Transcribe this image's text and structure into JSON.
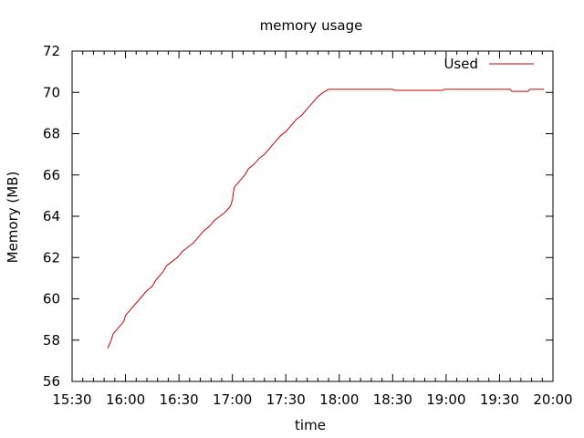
{
  "chart_data": {
    "type": "line",
    "title": "memory usage",
    "xlabel": "time",
    "ylabel": "Memory (MB)",
    "xlim": [
      "15:30",
      "20:00"
    ],
    "ylim": [
      56,
      72
    ],
    "xticks": [
      "15:30",
      "16:00",
      "16:30",
      "17:00",
      "17:30",
      "18:00",
      "18:30",
      "19:00",
      "19:30",
      "20:00"
    ],
    "yticks": [
      56,
      58,
      60,
      62,
      64,
      66,
      68,
      70,
      72
    ],
    "grid": false,
    "legend_position": "top-right",
    "series": [
      {
        "name": "Used",
        "color": "#cc0000",
        "points": [
          [
            "15:50",
            57.6
          ],
          [
            "15:51",
            57.8
          ],
          [
            "15:52",
            58.0
          ],
          [
            "15:53",
            58.3
          ],
          [
            "15:55",
            58.5
          ],
          [
            "15:57",
            58.7
          ],
          [
            "15:59",
            58.9
          ],
          [
            "16:00",
            59.2
          ],
          [
            "16:02",
            59.4
          ],
          [
            "16:04",
            59.6
          ],
          [
            "16:06",
            59.8
          ],
          [
            "16:08",
            60.0
          ],
          [
            "16:10",
            60.2
          ],
          [
            "16:12",
            60.4
          ],
          [
            "16:15",
            60.6
          ],
          [
            "16:17",
            60.9
          ],
          [
            "16:19",
            61.1
          ],
          [
            "16:21",
            61.3
          ],
          [
            "16:23",
            61.6
          ],
          [
            "16:26",
            61.8
          ],
          [
            "16:29",
            62.0
          ],
          [
            "16:32",
            62.3
          ],
          [
            "16:35",
            62.5
          ],
          [
            "16:38",
            62.7
          ],
          [
            "16:41",
            63.0
          ],
          [
            "16:44",
            63.3
          ],
          [
            "16:47",
            63.5
          ],
          [
            "16:50",
            63.8
          ],
          [
            "16:53",
            64.0
          ],
          [
            "16:56",
            64.2
          ],
          [
            "16:59",
            64.5
          ],
          [
            "17:00",
            64.8
          ],
          [
            "17:01",
            65.4
          ],
          [
            "17:03",
            65.6
          ],
          [
            "17:05",
            65.8
          ],
          [
            "17:07",
            66.0
          ],
          [
            "17:09",
            66.3
          ],
          [
            "17:12",
            66.5
          ],
          [
            "17:15",
            66.8
          ],
          [
            "17:18",
            67.0
          ],
          [
            "17:21",
            67.3
          ],
          [
            "17:24",
            67.6
          ],
          [
            "17:27",
            67.9
          ],
          [
            "17:30",
            68.1
          ],
          [
            "17:33",
            68.4
          ],
          [
            "17:36",
            68.7
          ],
          [
            "17:39",
            68.9
          ],
          [
            "17:42",
            69.2
          ],
          [
            "17:45",
            69.5
          ],
          [
            "17:48",
            69.8
          ],
          [
            "17:51",
            70.0
          ],
          [
            "17:54",
            70.15
          ],
          [
            "18:30",
            70.15
          ],
          [
            "18:31",
            70.1
          ],
          [
            "18:58",
            70.1
          ],
          [
            "18:59",
            70.15
          ],
          [
            "19:36",
            70.15
          ],
          [
            "19:37",
            70.05
          ],
          [
            "19:46",
            70.05
          ],
          [
            "19:47",
            70.15
          ],
          [
            "19:55",
            70.15
          ]
        ]
      }
    ]
  }
}
